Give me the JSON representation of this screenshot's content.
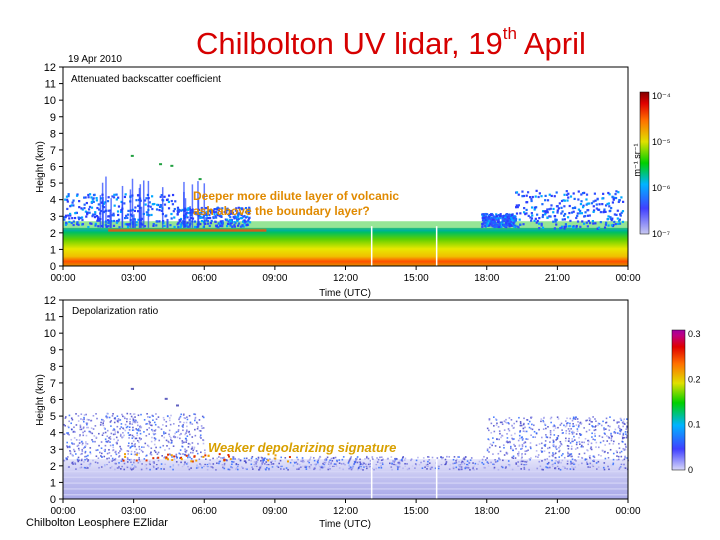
{
  "slide": {
    "title_main": "Chilbolton UV lidar, 19",
    "title_sup": "th",
    "title_end": " April",
    "footer": "Chilbolton Leosphere EZlidar"
  },
  "colors": {
    "title": "#d60000",
    "annotation": "#e08a00",
    "annotation2": "#d8a000"
  },
  "chart_data": [
    {
      "type": "heatmap",
      "date_label": "19 Apr 2010",
      "panel_label": "Attenuated backscatter coefficient",
      "xlabel": "Time (UTC)",
      "ylabel": "Height (km)",
      "x_ticks": [
        "00:00",
        "03:00",
        "06:00",
        "09:00",
        "12:00",
        "15:00",
        "18:00",
        "21:00",
        "00:00"
      ],
      "y_ticks": [
        "0",
        "1",
        "2",
        "3",
        "4",
        "5",
        "6",
        "7",
        "8",
        "9",
        "10",
        "11",
        "12"
      ],
      "ylim": [
        0,
        12
      ],
      "colorbar": {
        "label": "m⁻¹ sr⁻¹",
        "scale": "log",
        "ticks": [
          "10⁻⁴",
          "10⁻⁵",
          "10⁻⁶",
          "10⁻⁷"
        ]
      },
      "annotation": "Deeper more dilute layer of volcanic ash above the boundary layer?"
    },
    {
      "type": "heatmap",
      "panel_label": "Depolarization ratio",
      "xlabel": "Time (UTC)",
      "ylabel": "Height (km)",
      "x_ticks": [
        "00:00",
        "03:00",
        "06:00",
        "09:00",
        "12:00",
        "15:00",
        "18:00",
        "21:00",
        "00:00"
      ],
      "y_ticks": [
        "0",
        "1",
        "2",
        "3",
        "4",
        "5",
        "6",
        "7",
        "8",
        "9",
        "10",
        "11",
        "12"
      ],
      "ylim": [
        0,
        12
      ],
      "colorbar": {
        "label": "",
        "scale": "linear",
        "ticks": [
          "0.3",
          "0.2",
          "0.1",
          "0"
        ]
      },
      "annotation": "Weaker depolarizing signature"
    }
  ]
}
